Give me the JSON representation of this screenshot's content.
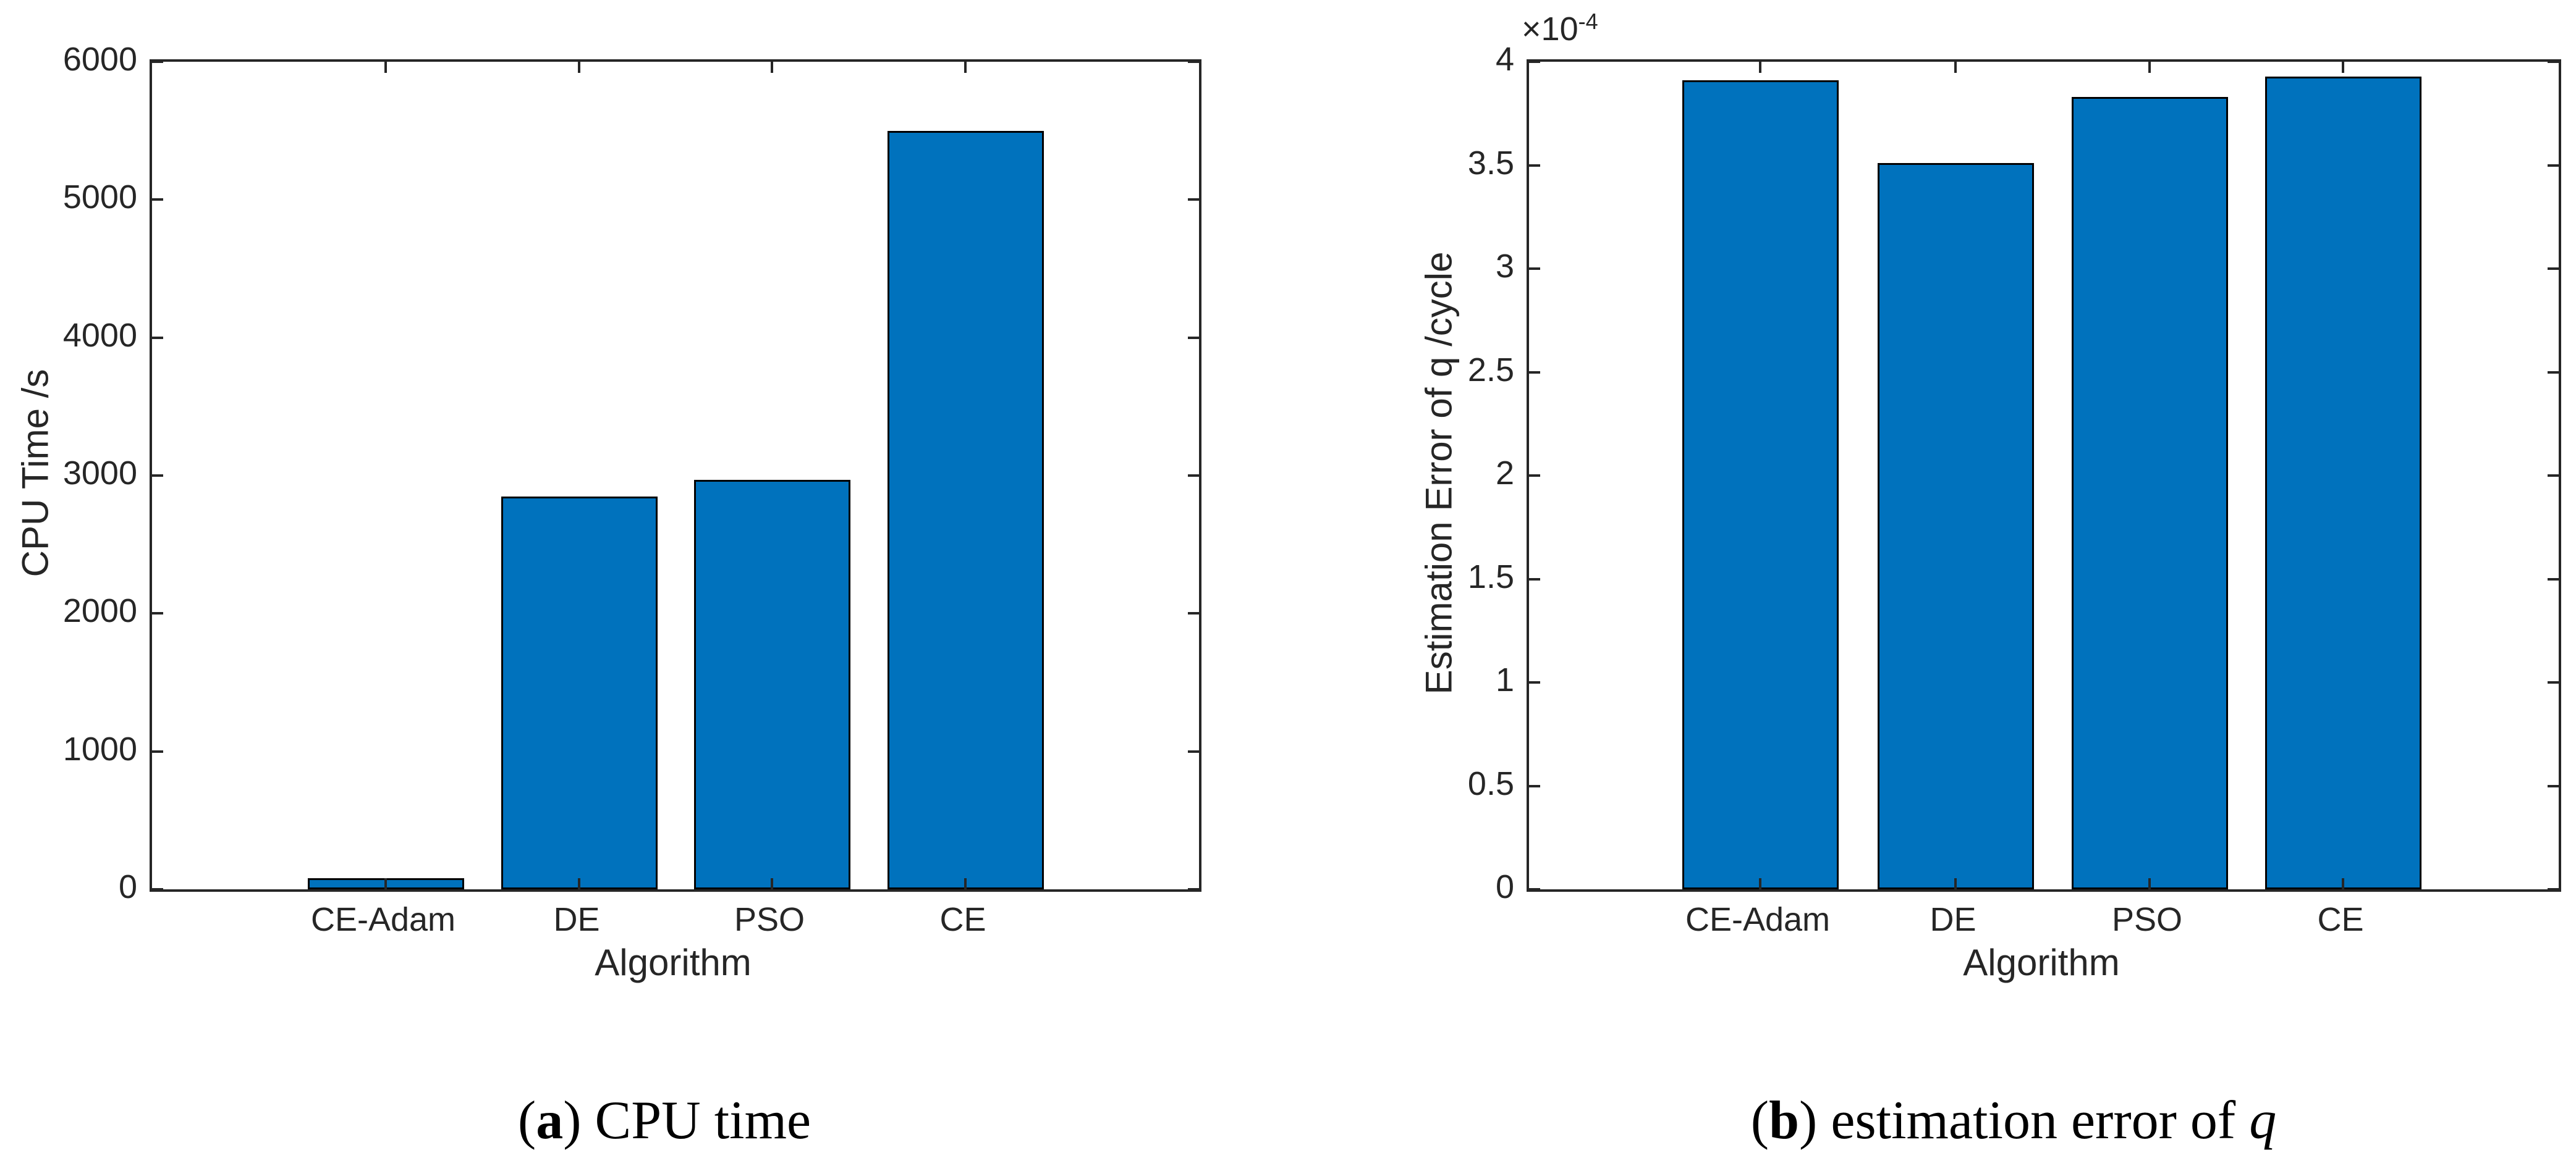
{
  "figure": {
    "background": "#ffffff",
    "bar_color": "#0072BD",
    "bar_edge_color": "#000000",
    "axis_color": "#262626"
  },
  "chart_data": [
    {
      "type": "bar",
      "panel": "a",
      "title": "",
      "categories": [
        "CE-Adam",
        "DE",
        "PSO",
        "CE"
      ],
      "values": [
        80,
        2850,
        2970,
        5500
      ],
      "axis_max": 6000,
      "xlabel": "Algorithm",
      "ylabel": "CPU Time /s",
      "ylim": [
        0,
        6000
      ],
      "grid": false,
      "legend": "none",
      "axis_ticks": [
        0,
        1000,
        2000,
        3000,
        4000,
        5000,
        6000
      ],
      "ytick_labels": [
        "0",
        "1000",
        "2000",
        "3000",
        "4000",
        "5000",
        "6000"
      ],
      "caption": {
        "pre": "(",
        "letter": "a",
        "post": ") ",
        "text": "CPU time",
        "italic": ""
      }
    },
    {
      "type": "bar",
      "panel": "b",
      "title": "",
      "categories": [
        "CE-Adam",
        "DE",
        "PSO",
        "CE"
      ],
      "values": [
        0.000391,
        0.000351,
        0.000383,
        0.000393
      ],
      "axis_values": [
        3.91,
        3.51,
        3.83,
        3.93
      ],
      "axis_max": 4,
      "xlabel": "Algorithm",
      "ylabel": "Estimation Error of q /cycle",
      "ylim": [
        0,
        0.0004
      ],
      "grid": false,
      "legend": "none",
      "multiplier": {
        "base": "×10",
        "exp": "-4"
      },
      "axis_ticks": [
        0,
        0.5,
        1,
        1.5,
        2,
        2.5,
        3,
        3.5,
        4
      ],
      "ytick_labels": [
        "0",
        "0.5",
        "1",
        "1.5",
        "2",
        "2.5",
        "3",
        "3.5",
        "4"
      ],
      "caption": {
        "pre": "(",
        "letter": "b",
        "post": ") ",
        "text": "estimation error of ",
        "italic": "q"
      }
    }
  ]
}
